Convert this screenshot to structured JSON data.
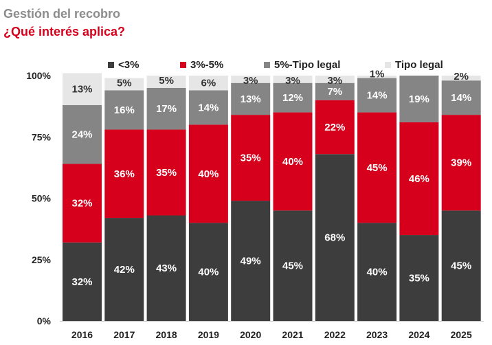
{
  "title": "Gestión del recobro",
  "subtitle": "¿Qué interés aplica?",
  "colors": {
    "title": "#8c8c8c",
    "subtitle": "#d6001c"
  },
  "chart_data": {
    "type": "bar",
    "stacked": true,
    "categories": [
      "2016",
      "2017",
      "2018",
      "2019",
      "2020",
      "2021",
      "2022",
      "2023",
      "2024",
      "2025"
    ],
    "yticks": [
      "0%",
      "25%",
      "50%",
      "75%",
      "100%"
    ],
    "ylim": [
      0,
      100
    ],
    "grid": false,
    "legend_position": "top",
    "series": [
      {
        "name": "<3%",
        "color": "#3d3d3d",
        "label_color": "#ffffff",
        "values": [
          32,
          42,
          43,
          40,
          49,
          45,
          68,
          40,
          35,
          45
        ],
        "labels": [
          "32%",
          "42%",
          "43%",
          "40%",
          "49%",
          "45%",
          "68%",
          "40%",
          "35%",
          "45%"
        ]
      },
      {
        "name": "3%-5%",
        "color": "#d6001c",
        "label_color": "#ffffff",
        "values": [
          32,
          36,
          35,
          40,
          35,
          40,
          22,
          45,
          46,
          39
        ],
        "labels": [
          "32%",
          "36%",
          "35%",
          "40%",
          "35%",
          "40%",
          "22%",
          "45%",
          "46%",
          "39%"
        ]
      },
      {
        "name": "5%-Tipo legal",
        "color": "#858585",
        "label_color": "#ffffff",
        "values": [
          24,
          16,
          17,
          14,
          13,
          12,
          7,
          14,
          19,
          14
        ],
        "labels": [
          "24%",
          "16%",
          "17%",
          "14%",
          "13%",
          "12%",
          "7%",
          "14%",
          "19%",
          "14%"
        ]
      },
      {
        "name": "Tipo legal",
        "color": "#e6e6e6",
        "label_color": "#333333",
        "values": [
          13,
          5,
          5,
          6,
          3,
          3,
          3,
          1,
          0,
          2
        ],
        "labels": [
          "13%",
          "5%",
          "5%",
          "6%",
          "3%",
          "3%",
          "3%",
          "1%",
          "",
          "2%"
        ]
      }
    ]
  }
}
